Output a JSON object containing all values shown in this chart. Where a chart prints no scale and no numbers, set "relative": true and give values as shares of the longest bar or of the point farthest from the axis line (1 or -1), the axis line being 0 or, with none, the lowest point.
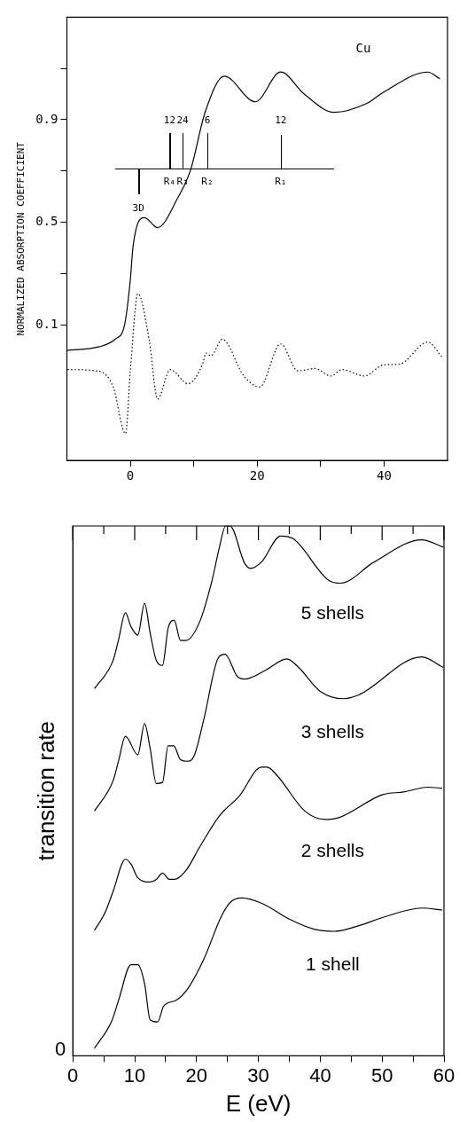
{
  "chart_data": [
    {
      "type": "line",
      "ylabel": "NORMALIZED ABSORPTION COEFFICIENT",
      "annotations": [
        "Cu",
        "12",
        "24",
        "6",
        "12",
        "R₄",
        "R₃",
        "R₂",
        "R₁",
        "3D"
      ],
      "xlim": [
        -10,
        50
      ],
      "xticks": [
        0,
        {
          "value": 10,
          "label": null
        },
        20,
        {
          "value": 30,
          "label": null
        },
        40
      ],
      "ylim": [
        -0.43,
        1.3
      ],
      "yticks": [
        0.1,
        {
          "value": 0.3,
          "label": null
        },
        0.5,
        {
          "value": 0.7,
          "label": null
        },
        0.9,
        {
          "value": 1.1,
          "label": null
        }
      ],
      "grid": false,
      "legend": false,
      "series": [
        {
          "color": "#000000",
          "line_style": "solid",
          "x": [
            -10,
            -4.9,
            -2.4,
            -0.9,
            0,
            0.45,
            2.2,
            4.3,
            7.5,
            9.5,
            11.8,
            14.8,
            19.7,
            23.7,
            27.4,
            32.1,
            37.3,
            39.9,
            46.9,
            48.8
          ],
          "values": [
            0.0,
            0.014,
            0.043,
            0.1,
            0.275,
            0.41,
            0.518,
            0.479,
            0.596,
            0.704,
            0.93,
            1.07,
            0.97,
            1.086,
            1.0,
            0.929,
            0.964,
            1.007,
            1.086,
            1.06
          ]
        },
        {
          "color": "#000000",
          "line_style": "dotted",
          "x": [
            -9.9,
            -4.9,
            -2.7,
            -0.75,
            0,
            1.2,
            3.0,
            4.3,
            6.3,
            9.1,
            11.5,
            11.9,
            12.7,
            14.5,
            17.9,
            20.4,
            23.7,
            26.4,
            29.1,
            31.6,
            33.4,
            36.9,
            39.9,
            42.4,
            46.9,
            49.1
          ],
          "values": [
            -0.075,
            -0.082,
            -0.143,
            -0.325,
            -0.08,
            0.221,
            0.036,
            -0.19,
            -0.075,
            -0.13,
            -0.046,
            -0.011,
            -0.021,
            0.043,
            -0.1,
            -0.143,
            0.025,
            -0.08,
            -0.071,
            -0.1,
            -0.075,
            -0.1,
            -0.057,
            -0.054,
            0.032,
            -0.025
          ]
        }
      ]
    },
    {
      "type": "line",
      "relative": true,
      "xlabel": "E (eV)",
      "ylabel": "transition rate",
      "annotations": [
        "0"
      ],
      "xlim": [
        0,
        60
      ],
      "xticks": [
        0,
        {
          "value": 5,
          "label": null
        },
        10,
        {
          "value": 15,
          "label": null
        },
        20,
        {
          "value": 25,
          "label": null
        },
        30,
        {
          "value": 35,
          "label": null
        },
        40,
        {
          "value": 45,
          "label": null
        },
        50,
        {
          "value": 55,
          "label": null
        },
        60
      ],
      "grid": false,
      "legend": false,
      "series": [
        {
          "name": "5 shells",
          "color": "#000000",
          "x": [
            3.5,
            6.5,
            7.4,
            8.5,
            9.4,
            10.5,
            11.6,
            12.5,
            13.5,
            14.5,
            15.4,
            16.4,
            17.4,
            18.3,
            20.5,
            22.5,
            23.7,
            24.7,
            25.4,
            27.8,
            28.7,
            30.5,
            33.6,
            35.6,
            41.4,
            43.3,
            48.7,
            56.4,
            59.9
          ],
          "values": [
            0.693,
            0.746,
            0.786,
            0.836,
            0.81,
            0.794,
            0.854,
            0.798,
            0.746,
            0.737,
            0.807,
            0.822,
            0.784,
            0.784,
            0.819,
            0.897,
            0.96,
            1,
            1,
            0.929,
            0.92,
            0.932,
            0.981,
            0.976,
            0.897,
            0.892,
            0.932,
            0.974,
            0.96
          ]
        },
        {
          "name": "3 shells",
          "color": "#000000",
          "x": [
            3.5,
            6.5,
            7.4,
            8.5,
            10.5,
            11.6,
            12.5,
            13.5,
            14.5,
            15.4,
            16.3,
            17.4,
            18.5,
            19.6,
            21.2,
            23.5,
            24.6,
            26.6,
            27.8,
            31.2,
            34.6,
            36.5,
            40.0,
            43.8,
            46.2,
            56.4,
            59.9
          ],
          "values": [
            0.462,
            0.519,
            0.557,
            0.603,
            0.568,
            0.627,
            0.58,
            0.514,
            0.516,
            0.585,
            0.585,
            0.559,
            0.556,
            0.566,
            0.636,
            0.751,
            0.758,
            0.716,
            0.711,
            0.728,
            0.749,
            0.733,
            0.688,
            0.674,
            0.681,
            0.753,
            0.733
          ]
        },
        {
          "name": "2 shells",
          "color": "#000000",
          "x": [
            3.5,
            5.2,
            6.5,
            8.5,
            9.4,
            10.5,
            12.5,
            13.5,
            14.5,
            15.6,
            16.4,
            18.3,
            20.5,
            23.7,
            26.9,
            30.5,
            31.4,
            33.1,
            37.5,
            40.8,
            42.9,
            50.1,
            53.5,
            57.4,
            59.7
          ],
          "values": [
            0.237,
            0.27,
            0.31,
            0.371,
            0.362,
            0.336,
            0.328,
            0.333,
            0.345,
            0.333,
            0.333,
            0.35,
            0.394,
            0.453,
            0.49,
            0.545,
            0.545,
            0.528,
            0.462,
            0.446,
            0.449,
            0.493,
            0.498,
            0.507,
            0.505
          ]
        },
        {
          "name": "1 shell",
          "color": "#000000",
          "x": [
            3.5,
            6.3,
            7.4,
            9.4,
            10.5,
            11.6,
            12.5,
            13.7,
            14.7,
            16.7,
            18.6,
            21.2,
            24.0,
            25.4,
            27.3,
            30.7,
            35.0,
            39.0,
            42.3,
            45.8,
            50.6,
            56.4,
            59.7
          ],
          "values": [
            0.014,
            0.066,
            0.105,
            0.172,
            0.172,
            0.136,
            0.068,
            0.064,
            0.094,
            0.105,
            0.127,
            0.183,
            0.263,
            0.289,
            0.298,
            0.287,
            0.258,
            0.239,
            0.235,
            0.244,
            0.263,
            0.279,
            0.275
          ]
        }
      ]
    }
  ]
}
